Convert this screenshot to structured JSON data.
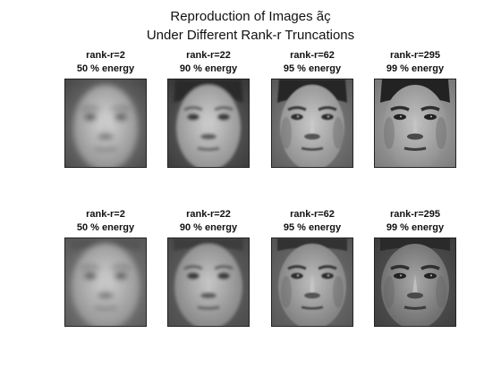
{
  "chart_data": {
    "type": "image-grid",
    "title": [
      "Reproduction of Images ãç",
      "Under Different Rank-r Truncations"
    ],
    "rows": [
      {
        "subject": "face-1",
        "panels": [
          {
            "rank_label": "rank-r=2",
            "energy_label": "50 % energy",
            "rank": 2,
            "energy_percent": 50
          },
          {
            "rank_label": "rank-r=22",
            "energy_label": "90 % energy",
            "rank": 22,
            "energy_percent": 90
          },
          {
            "rank_label": "rank-r=62",
            "energy_label": "95 % energy",
            "rank": 62,
            "energy_percent": 95
          },
          {
            "rank_label": "rank-r=295",
            "energy_label": "99 % energy",
            "rank": 295,
            "energy_percent": 99
          }
        ]
      },
      {
        "subject": "face-2",
        "panels": [
          {
            "rank_label": "rank-r=2",
            "energy_label": "50 % energy",
            "rank": 2,
            "energy_percent": 50
          },
          {
            "rank_label": "rank-r=22",
            "energy_label": "90 % energy",
            "rank": 22,
            "energy_percent": 90
          },
          {
            "rank_label": "rank-r=62",
            "energy_label": "95 % energy",
            "rank": 62,
            "energy_percent": 95
          },
          {
            "rank_label": "rank-r=295",
            "energy_label": "99 % energy",
            "rank": 295,
            "energy_percent": 99
          }
        ]
      }
    ],
    "colormap": "gray"
  }
}
